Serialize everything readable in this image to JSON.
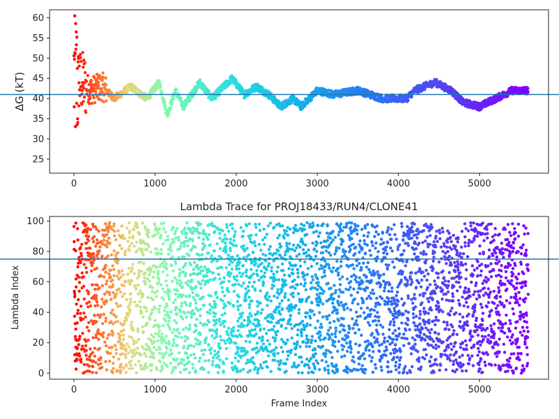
{
  "chart_data": [
    {
      "type": "scatter",
      "title": "",
      "xlabel": "",
      "ylabel": "ΔG (kT)",
      "xlim": [
        -300,
        5850
      ],
      "ylim": [
        21.5,
        62
      ],
      "xticks": [
        0,
        1000,
        2000,
        3000,
        4000,
        5000
      ],
      "yticks": [
        25,
        30,
        35,
        40,
        45,
        50,
        55,
        60
      ],
      "reference_line": 41,
      "colormap": "rainbow (red early frames → purple late frames)",
      "points_x_range": [
        0,
        5600
      ],
      "series_profile": [
        {
          "x": 0,
          "y": 45
        },
        {
          "x": 100,
          "y": 44
        },
        {
          "x": 200,
          "y": 42
        },
        {
          "x": 350,
          "y": 43
        },
        {
          "x": 500,
          "y": 40
        },
        {
          "x": 700,
          "y": 43
        },
        {
          "x": 900,
          "y": 40
        },
        {
          "x": 1050,
          "y": 44
        },
        {
          "x": 1150,
          "y": 36
        },
        {
          "x": 1250,
          "y": 42
        },
        {
          "x": 1350,
          "y": 38
        },
        {
          "x": 1550,
          "y": 44
        },
        {
          "x": 1700,
          "y": 40
        },
        {
          "x": 1950,
          "y": 45
        },
        {
          "x": 2100,
          "y": 41
        },
        {
          "x": 2250,
          "y": 43
        },
        {
          "x": 2400,
          "y": 41
        },
        {
          "x": 2550,
          "y": 38
        },
        {
          "x": 2700,
          "y": 40
        },
        {
          "x": 2800,
          "y": 38
        },
        {
          "x": 3000,
          "y": 42
        },
        {
          "x": 3200,
          "y": 41
        },
        {
          "x": 3500,
          "y": 42
        },
        {
          "x": 3800,
          "y": 40
        },
        {
          "x": 4100,
          "y": 40
        },
        {
          "x": 4200,
          "y": 42
        },
        {
          "x": 4450,
          "y": 44
        },
        {
          "x": 4650,
          "y": 42
        },
        {
          "x": 4800,
          "y": 39
        },
        {
          "x": 5000,
          "y": 38
        },
        {
          "x": 5200,
          "y": 40
        },
        {
          "x": 5400,
          "y": 42
        },
        {
          "x": 5600,
          "y": 42
        }
      ]
    },
    {
      "type": "scatter",
      "title": "Lambda Trace for PROJ18433/RUN4/CLONE41",
      "xlabel": "Frame Index",
      "ylabel": "Lambda Index",
      "xlim": [
        -300,
        5850
      ],
      "ylim": [
        -4,
        103
      ],
      "xticks": [
        0,
        1000,
        2000,
        3000,
        4000,
        5000
      ],
      "yticks": [
        0,
        20,
        40,
        60,
        80,
        100
      ],
      "reference_line": 75,
      "colormap": "rainbow (red early frames → purple late frames)",
      "points_x_range": [
        0,
        5600
      ],
      "points_y_range": [
        0,
        99
      ]
    }
  ]
}
